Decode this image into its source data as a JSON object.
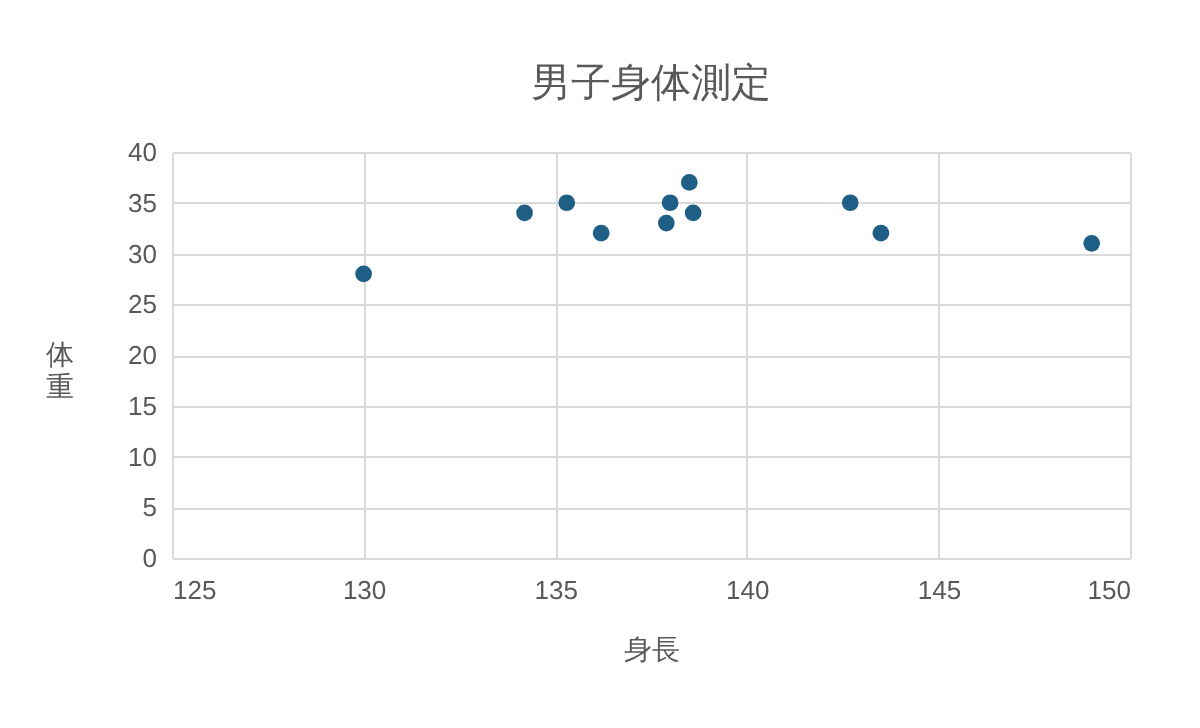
{
  "chart_data": {
    "type": "scatter",
    "title": "男子身体測定",
    "xlabel": "身長",
    "ylabel": "体重",
    "x": [
      130.0,
      134.2,
      135.3,
      136.2,
      137.9,
      138.0,
      138.5,
      138.6,
      142.7,
      143.5,
      149.0
    ],
    "series": [
      {
        "color": "#1f5f86",
        "values": [
          28,
          34,
          35,
          32,
          33,
          35,
          37,
          34,
          35,
          32,
          31
        ]
      }
    ],
    "xlim": [
      125,
      150
    ],
    "xticks": [
      125,
      130,
      135,
      140,
      145,
      150
    ],
    "ylim": [
      0,
      40
    ],
    "yticks": [
      0,
      5,
      10,
      15,
      20,
      25,
      30,
      35,
      40
    ],
    "grid": true,
    "marker": "circle",
    "legend": false
  }
}
